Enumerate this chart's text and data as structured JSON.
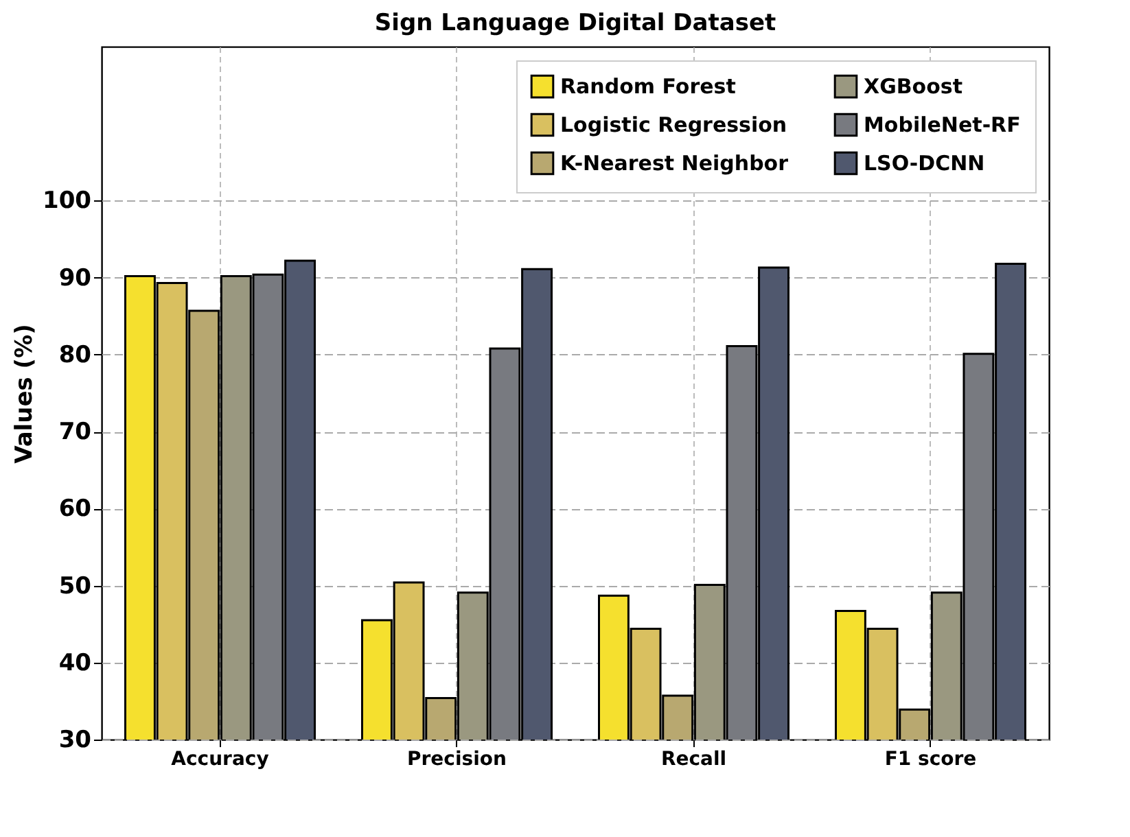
{
  "chart_data": {
    "type": "bar",
    "title": "Sign Language Digital Dataset",
    "ylabel": "Values (%)",
    "categories": [
      "Accuracy",
      "Precision",
      "Recall",
      "F1 score"
    ],
    "series": [
      {
        "name": "Random Forest",
        "color": "#f5e02e",
        "values": [
          90.2,
          45.5,
          48.7,
          46.7
        ]
      },
      {
        "name": "Logistic Regression",
        "color": "#d9c060",
        "values": [
          89.3,
          50.4,
          44.4,
          44.4
        ]
      },
      {
        "name": "K-Nearest Neighbor",
        "color": "#b8a870",
        "values": [
          85.7,
          35.4,
          35.7,
          33.9
        ]
      },
      {
        "name": "XGBoost",
        "color": "#9a9880",
        "values": [
          90.2,
          49.1,
          50.1,
          49.1
        ]
      },
      {
        "name": "MobileNet-RF",
        "color": "#787a80",
        "values": [
          90.4,
          80.8,
          81.1,
          80.1
        ]
      },
      {
        "name": "LSO-DCNN",
        "color": "#50586e",
        "values": [
          92.2,
          91.1,
          91.3,
          91.8
        ]
      }
    ],
    "ylim": [
      30,
      120
    ],
    "yticks": [
      30,
      40,
      50,
      60,
      70,
      80,
      90,
      100
    ],
    "grid": true,
    "legend": "top right"
  }
}
